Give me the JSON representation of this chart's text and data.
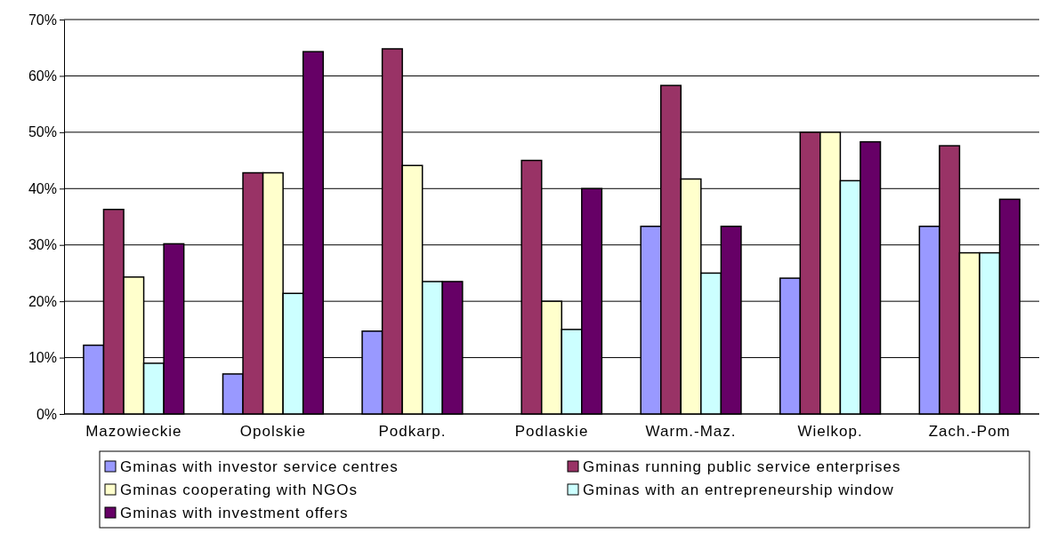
{
  "chart_data": {
    "type": "bar",
    "categories": [
      "Mazowieckie",
      "Opolskie",
      "Podkarp.",
      "Podlaskie",
      "Warm.-Maz.",
      "Wielkop.",
      "Zach.-Pom"
    ],
    "series": [
      {
        "name": "Gminas with investor service centres",
        "color": "#9999ff",
        "values": [
          12.2,
          7.1,
          14.7,
          0,
          33.3,
          24.1,
          33.3
        ]
      },
      {
        "name": "Gminas running public service enterprises",
        "color": "#993366",
        "values": [
          36.3,
          42.8,
          64.8,
          45,
          58.3,
          50,
          47.6
        ]
      },
      {
        "name": "Gminas cooperating with NGOs",
        "color": "#ffffcc",
        "values": [
          24.3,
          42.8,
          44.1,
          20,
          41.7,
          50,
          28.6
        ]
      },
      {
        "name": "Gminas with an entrepreneurship window",
        "color": "#ccffff",
        "values": [
          9,
          21.4,
          23.5,
          15,
          25,
          41.4,
          28.6
        ]
      },
      {
        "name": "Gminas with investment offers",
        "color": "#660066",
        "values": [
          30.2,
          64.3,
          23.5,
          40,
          33.3,
          48.3,
          38.1
        ]
      }
    ],
    "ylim": [
      0,
      70
    ],
    "yticks": [
      {
        "value": 0,
        "label": "0%"
      },
      {
        "value": 10,
        "label": "10%"
      },
      {
        "value": 20,
        "label": "20%"
      },
      {
        "value": 30,
        "label": "30%"
      },
      {
        "value": 40,
        "label": "40%"
      },
      {
        "value": 50,
        "label": "50%"
      },
      {
        "value": 60,
        "label": "60%"
      },
      {
        "value": 70,
        "label": "70%"
      }
    ],
    "grid": "y",
    "legend": "bottom"
  }
}
